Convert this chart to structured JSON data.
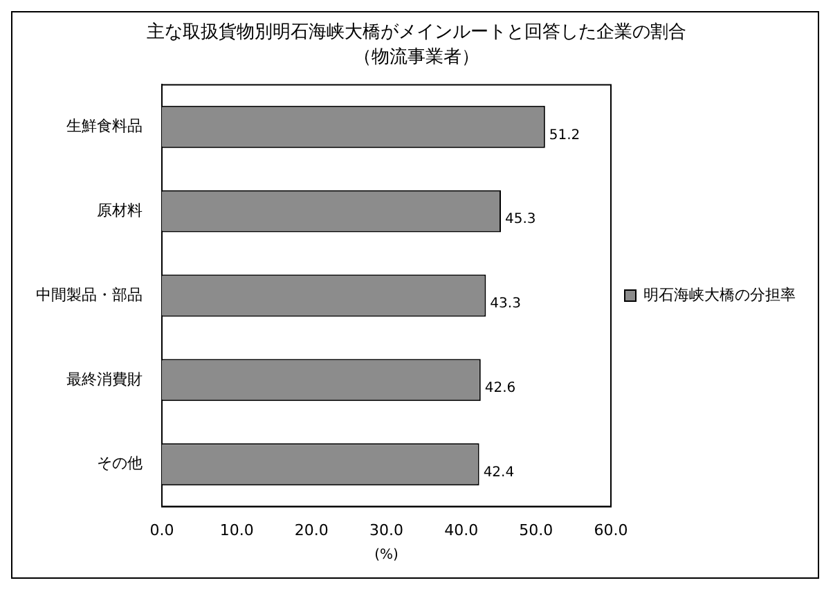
{
  "chart_data": {
    "type": "bar",
    "orientation": "horizontal",
    "title": "主な取扱貨物別明石海峡大橋がメインルートと回答した企業の割合",
    "subtitle": "（物流事業者）",
    "xlabel": "(%)",
    "categories": [
      "生鮮食料品",
      "原材料",
      "中間製品・部品",
      "最終消費財",
      "その他"
    ],
    "series": [
      {
        "name": "明石海峡大橋の分担率",
        "color": "#8c8c8c",
        "values": [
          51.2,
          45.3,
          43.3,
          42.6,
          42.4
        ]
      }
    ],
    "xlim": [
      0,
      60
    ],
    "xticks": [
      {
        "value": 0,
        "label": "0.0"
      },
      {
        "value": 10,
        "label": "10.0"
      },
      {
        "value": 20,
        "label": "20.0"
      },
      {
        "value": 30,
        "label": "30.0"
      },
      {
        "value": 40,
        "label": "40.0"
      },
      {
        "value": 50,
        "label": "50.0"
      },
      {
        "value": 60,
        "label": "60.0"
      }
    ],
    "grid": false,
    "legend": "right",
    "data_labels": true
  }
}
